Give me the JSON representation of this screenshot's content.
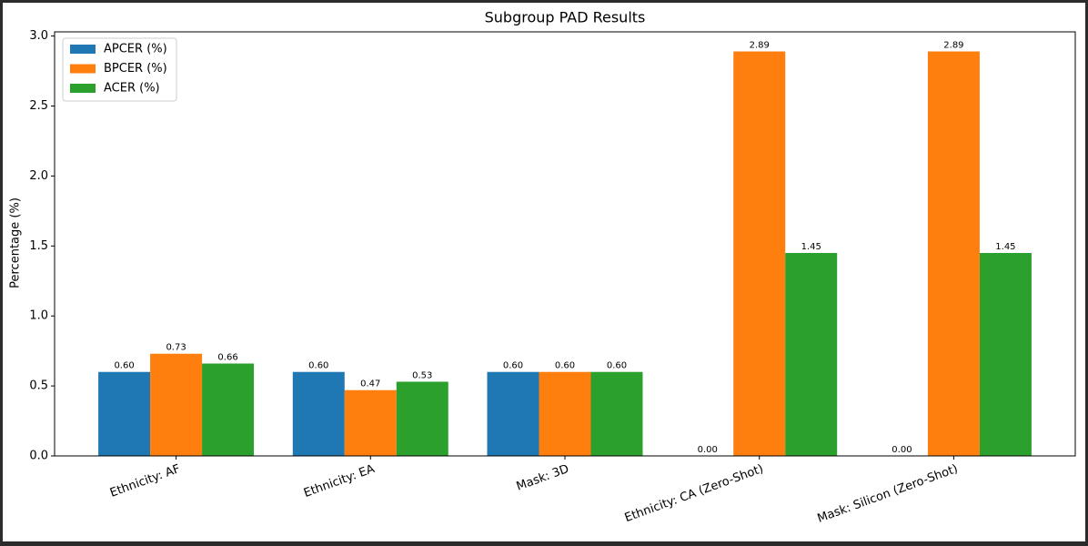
{
  "chart_data": {
    "type": "bar",
    "title": "Subgroup PAD Results",
    "y_label": "Percentage (%)",
    "categories": [
      "Ethnicity: AF",
      "Ethnicity: EA",
      "Mask: 3D",
      "Ethnicity: CA (Zero-Shot)",
      "Mask: Silicon (Zero-Shot)"
    ],
    "series": [
      {
        "name": "APCER (%)",
        "color": "#1f77b4",
        "values": [
          0.6,
          0.6,
          0.6,
          0,
          0
        ],
        "value_labels": [
          "0.60",
          "0.60",
          "0.60",
          "0.00",
          "0.00"
        ]
      },
      {
        "name": "BPCER (%)",
        "color": "#ff7f0e",
        "values": [
          0.73,
          0.47,
          0.6,
          2.89,
          2.89
        ],
        "value_labels": [
          "0.73",
          "0.47",
          "0.60",
          "2.89",
          "2.89"
        ]
      },
      {
        "name": "ACER (%)",
        "color": "#2ca02c",
        "values": [
          0.66,
          0.53,
          0.6,
          1.45,
          1.45
        ],
        "value_labels": [
          "0.66",
          "0.53",
          "0.60",
          "1.45",
          "1.45"
        ]
      }
    ],
    "ylim": [
      0,
      3.03
    ],
    "yticks": [
      {
        "value": 0,
        "label": "0.0"
      },
      0.5,
      {
        "value": 1,
        "label": "1.0"
      },
      1.5,
      {
        "value": 2,
        "label": "2.0"
      },
      2.5,
      {
        "value": 3,
        "label": "3.0"
      }
    ],
    "legend": "upper left",
    "grid": false
  }
}
